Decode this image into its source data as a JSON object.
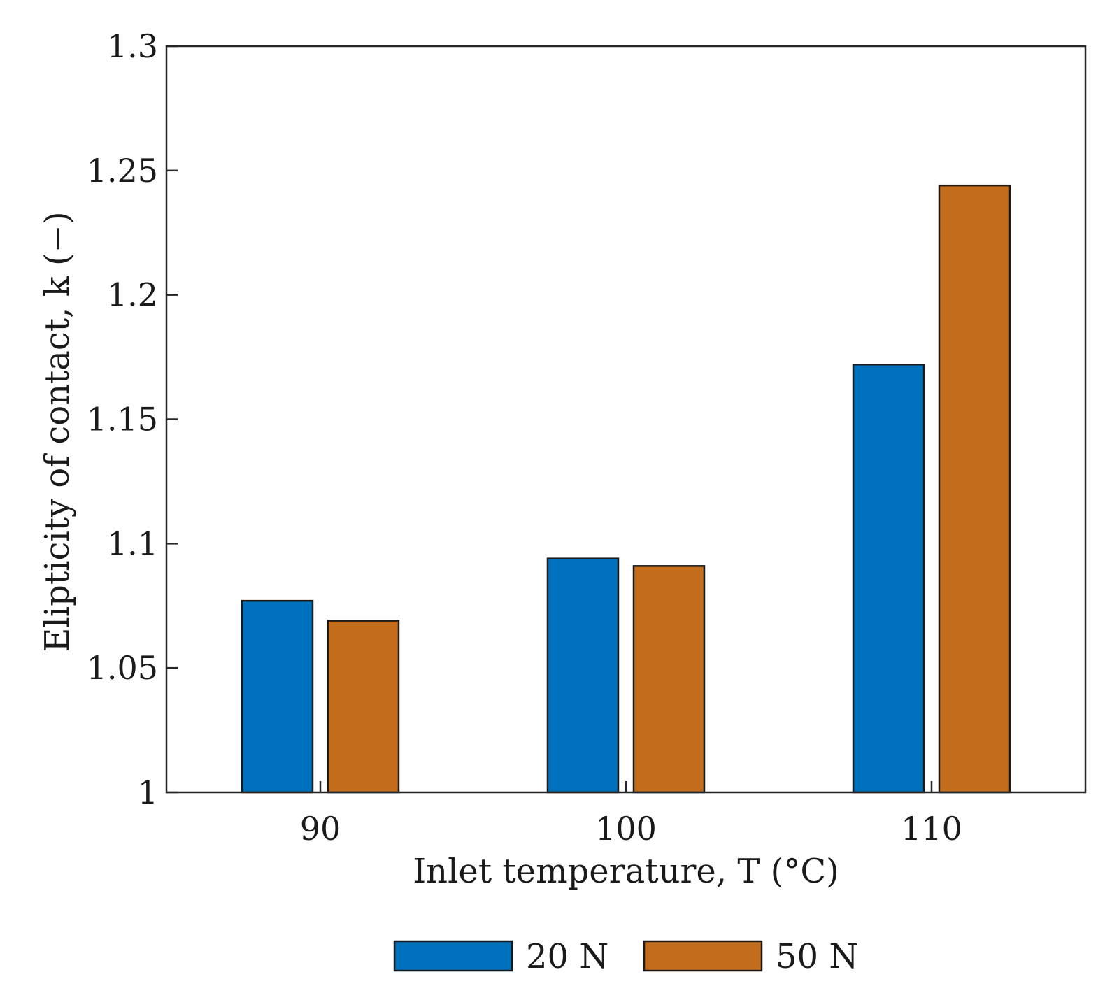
{
  "chart_data": {
    "type": "bar",
    "title": "",
    "xlabel": "Inlet temperature, T (°C)",
    "ylabel": "Elipticity of contact, k (−)",
    "categories": [
      "90",
      "100",
      "110"
    ],
    "series": [
      {
        "name": "20 N",
        "color": "#0072bd",
        "values": [
          1.077,
          1.094,
          1.172
        ]
      },
      {
        "name": "50 N",
        "color": "#c36d1c",
        "values": [
          1.069,
          1.091,
          1.244
        ]
      }
    ],
    "ylim": [
      1,
      1.3
    ],
    "yticks": [
      "1",
      "1.05",
      "1.1",
      "1.15",
      "1.2",
      "1.25",
      "1.3"
    ],
    "ytick_values": [
      1,
      1.05,
      1.1,
      1.15,
      1.2,
      1.25,
      1.3
    ],
    "grid": false,
    "legend_position": "bottom-center"
  }
}
